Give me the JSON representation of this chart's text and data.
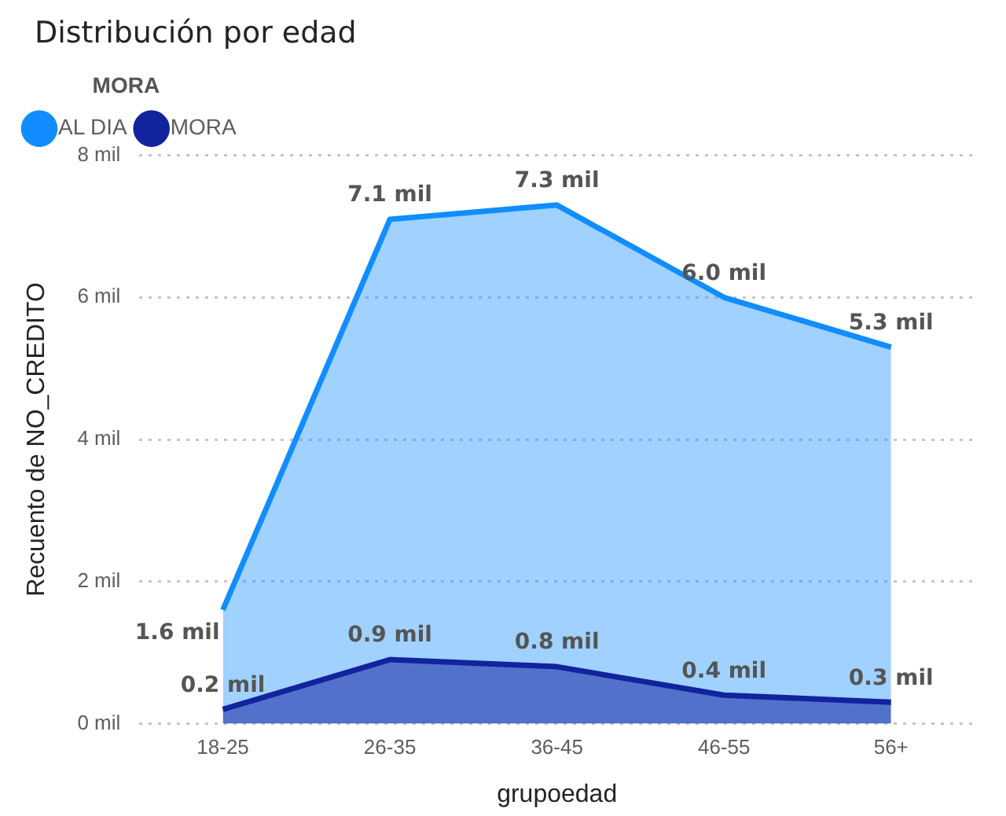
{
  "chart_data": {
    "type": "area",
    "title": "Distribución por edad",
    "xlabel": "grupoedad",
    "ylabel": "Recuento de NO_CREDITO",
    "legend_title": "MORA",
    "legend": "top left",
    "grid": "y",
    "marker": "none",
    "categories": [
      "18-25",
      "26-35",
      "36-45",
      "46-55",
      "56+"
    ],
    "ylim": [
      0,
      8
    ],
    "yticks": [
      {
        "value": 0,
        "label": "0 mil"
      },
      {
        "value": 2,
        "label": "2 mil"
      },
      {
        "value": 4,
        "label": "4 mil"
      },
      {
        "value": 6,
        "label": "6 mil"
      },
      {
        "value": 8,
        "label": "8 mil"
      }
    ],
    "series": [
      {
        "name": "AL DIA",
        "color": "#118dff",
        "values": [
          1.6,
          7.1,
          7.3,
          6.0,
          5.3
        ],
        "value_labels": [
          "1.6 mil",
          "7.1 mil",
          "7.3 mil",
          "6.0 mil",
          "5.3 mil"
        ]
      },
      {
        "name": "MORA",
        "color": "#12239e",
        "values": [
          0.2,
          0.9,
          0.8,
          0.4,
          0.3
        ],
        "value_labels": [
          "0.2 mil",
          "0.9 mil",
          "0.8 mil",
          "0.4 mil",
          "0.3 mil"
        ]
      }
    ]
  }
}
